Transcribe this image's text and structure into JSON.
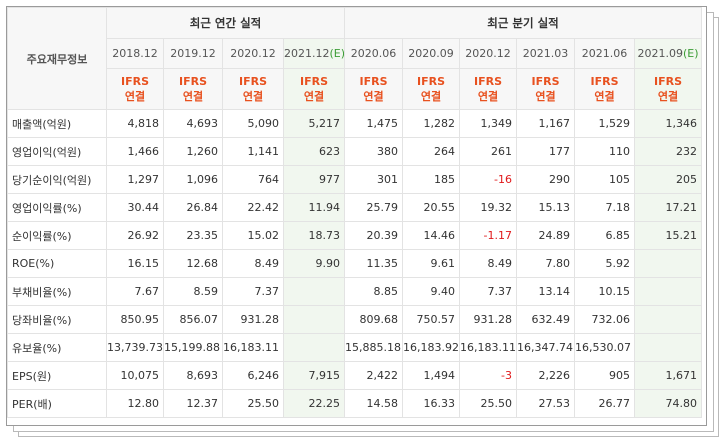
{
  "header": {
    "label": "주요재무정보",
    "annual_title": "최근 연간 실적",
    "quarter_title": "최근 분기 실적",
    "standard": "IFRS",
    "basis": "연결"
  },
  "annual_periods": [
    {
      "period": "2018.12",
      "est": ""
    },
    {
      "period": "2019.12",
      "est": ""
    },
    {
      "period": "2020.12",
      "est": ""
    },
    {
      "period": "2021.12",
      "est": "(E)"
    }
  ],
  "quarter_periods": [
    {
      "period": "2020.06",
      "est": ""
    },
    {
      "period": "2020.09",
      "est": ""
    },
    {
      "period": "2020.12",
      "est": ""
    },
    {
      "period": "2021.03",
      "est": ""
    },
    {
      "period": "2021.06",
      "est": ""
    },
    {
      "period": "2021.09",
      "est": "(E)"
    }
  ],
  "rows": [
    {
      "label": "매출액(억원)",
      "values": [
        "4,818",
        "4,693",
        "5,090",
        "5,217",
        "1,475",
        "1,282",
        "1,349",
        "1,167",
        "1,529",
        "1,346"
      ]
    },
    {
      "label": "영업이익(억원)",
      "values": [
        "1,466",
        "1,260",
        "1,141",
        "623",
        "380",
        "264",
        "261",
        "177",
        "110",
        "232"
      ]
    },
    {
      "label": "당기순이익(억원)",
      "values": [
        "1,297",
        "1,096",
        "764",
        "977",
        "301",
        "185",
        "-16",
        "290",
        "105",
        "205"
      ]
    },
    {
      "label": "영업이익률(%)",
      "values": [
        "30.44",
        "26.84",
        "22.42",
        "11.94",
        "25.79",
        "20.55",
        "19.32",
        "15.13",
        "7.18",
        "17.21"
      ]
    },
    {
      "label": "순이익률(%)",
      "values": [
        "26.92",
        "23.35",
        "15.02",
        "18.73",
        "20.39",
        "14.46",
        "-1.17",
        "24.89",
        "6.85",
        "15.21"
      ]
    },
    {
      "label": "ROE(%)",
      "values": [
        "16.15",
        "12.68",
        "8.49",
        "9.90",
        "11.35",
        "9.61",
        "8.49",
        "7.80",
        "5.92",
        ""
      ]
    },
    {
      "label": "부채비율(%)",
      "values": [
        "7.67",
        "8.59",
        "7.37",
        "",
        "8.85",
        "9.40",
        "7.37",
        "13.14",
        "10.15",
        ""
      ]
    },
    {
      "label": "당좌비율(%)",
      "values": [
        "850.95",
        "856.07",
        "931.28",
        "",
        "809.68",
        "750.57",
        "931.28",
        "632.49",
        "732.06",
        ""
      ]
    },
    {
      "label": "유보율(%)",
      "values": [
        "13,739.73",
        "15,199.88",
        "16,183.11",
        "",
        "15,885.18",
        "16,183.92",
        "16,183.11",
        "16,347.74",
        "16,530.07",
        ""
      ]
    },
    {
      "label": "EPS(원)",
      "values": [
        "10,075",
        "8,693",
        "6,246",
        "7,915",
        "2,422",
        "1,494",
        "-3",
        "2,226",
        "905",
        "1,671"
      ]
    },
    {
      "label": "PER(배)",
      "values": [
        "12.80",
        "12.37",
        "25.50",
        "22.25",
        "14.58",
        "16.33",
        "25.50",
        "27.53",
        "26.77",
        "74.80"
      ]
    }
  ]
}
